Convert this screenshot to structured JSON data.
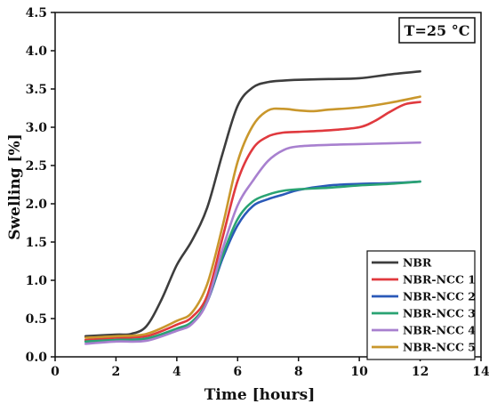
{
  "chart_data": {
    "type": "line",
    "xlabel": "Time [hours]",
    "ylabel": "Swelling [%]",
    "xlim": [
      0,
      14
    ],
    "ylim": [
      0,
      4.5
    ],
    "xticks": [
      0,
      2,
      4,
      6,
      8,
      10,
      12,
      14
    ],
    "yticks": [
      0.0,
      0.5,
      1.0,
      1.5,
      2.0,
      2.5,
      3.0,
      3.5,
      4.0,
      4.5
    ],
    "xtick_labels": [
      "0",
      "2",
      "4",
      "6",
      "8",
      "10",
      "12",
      "14"
    ],
    "ytick_labels": [
      "0.0",
      "0.5",
      "1.0",
      "1.5",
      "2.0",
      "2.5",
      "3.0",
      "3.5",
      "4.0",
      "4.5"
    ],
    "grid": false,
    "legend_position": "bottom-right",
    "annotation": "T=25 °C",
    "series": [
      {
        "name": "NBR",
        "color": "#3d3d3d",
        "x": [
          1,
          2,
          2.5,
          3,
          3.5,
          4,
          4.5,
          5,
          5.5,
          6,
          6.5,
          7,
          7.5,
          8,
          9,
          10,
          11,
          12
        ],
        "y": [
          0.27,
          0.29,
          0.3,
          0.4,
          0.75,
          1.2,
          1.52,
          1.95,
          2.65,
          3.28,
          3.52,
          3.59,
          3.61,
          3.62,
          3.63,
          3.64,
          3.69,
          3.73
        ]
      },
      {
        "name": "NBR-NCC 1",
        "color": "#e0393e",
        "x": [
          1,
          2,
          3,
          4,
          4.5,
          5,
          5.5,
          6,
          6.5,
          7,
          7.5,
          8,
          9,
          10,
          10.5,
          11,
          11.5,
          12
        ],
        "y": [
          0.22,
          0.25,
          0.27,
          0.42,
          0.52,
          0.8,
          1.55,
          2.3,
          2.72,
          2.88,
          2.93,
          2.94,
          2.96,
          3.0,
          3.08,
          3.2,
          3.3,
          3.33
        ]
      },
      {
        "name": "NBR-NCC 2",
        "color": "#2a59b8",
        "x": [
          1,
          2,
          3,
          4,
          4.5,
          5,
          5.5,
          6,
          6.5,
          7,
          7.5,
          8,
          9,
          10,
          11,
          12
        ],
        "y": [
          0.2,
          0.22,
          0.24,
          0.36,
          0.45,
          0.72,
          1.28,
          1.72,
          1.97,
          2.06,
          2.12,
          2.18,
          2.24,
          2.26,
          2.27,
          2.29
        ]
      },
      {
        "name": "NBR-NCC 3",
        "color": "#2aa373",
        "x": [
          1,
          2,
          3,
          4,
          4.5,
          5,
          5.5,
          6,
          6.5,
          7,
          7.5,
          8,
          9,
          10,
          11,
          12
        ],
        "y": [
          0.2,
          0.22,
          0.24,
          0.37,
          0.46,
          0.73,
          1.32,
          1.8,
          2.03,
          2.12,
          2.17,
          2.19,
          2.21,
          2.24,
          2.26,
          2.29
        ]
      },
      {
        "name": "NBR-NCC 4",
        "color": "#a880cf",
        "x": [
          1,
          2,
          3,
          4,
          4.5,
          5,
          5.5,
          6,
          6.5,
          7,
          7.5,
          8,
          9,
          10,
          11,
          12
        ],
        "y": [
          0.17,
          0.2,
          0.21,
          0.34,
          0.43,
          0.72,
          1.4,
          1.98,
          2.3,
          2.56,
          2.7,
          2.75,
          2.77,
          2.78,
          2.79,
          2.8
        ]
      },
      {
        "name": "NBR-NCC 5",
        "color": "#c9972c",
        "x": [
          1,
          2,
          3,
          4,
          4.5,
          5,
          5.5,
          6,
          6.5,
          7,
          7.5,
          8,
          8.5,
          9,
          10,
          11,
          12
        ],
        "y": [
          0.25,
          0.27,
          0.3,
          0.47,
          0.58,
          0.95,
          1.7,
          2.55,
          3.02,
          3.22,
          3.24,
          3.22,
          3.21,
          3.23,
          3.26,
          3.32,
          3.4
        ]
      }
    ]
  }
}
